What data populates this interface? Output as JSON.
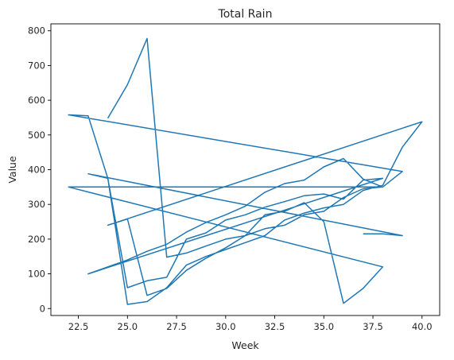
{
  "chart_data": {
    "type": "line",
    "title": "Total Rain",
    "xlabel": "Week",
    "ylabel": "Value",
    "xlim": [
      21.1,
      40.9
    ],
    "ylim": [
      -20,
      820
    ],
    "x_ticks": [
      22.5,
      25.0,
      27.5,
      30.0,
      32.5,
      35.0,
      37.5,
      40.0
    ],
    "x_tick_labels": [
      "22.5",
      "25.0",
      "27.5",
      "30.0",
      "32.5",
      "35.0",
      "37.5",
      "40.0"
    ],
    "y_ticks": [
      0,
      100,
      200,
      300,
      400,
      500,
      600,
      700,
      800
    ],
    "y_tick_labels": [
      "0",
      "100",
      "200",
      "300",
      "400",
      "500",
      "600",
      "700",
      "800"
    ],
    "grid": false,
    "legend": "none",
    "color": "#1f77b4",
    "series": [
      {
        "x": [
          24,
          25,
          26,
          27,
          28,
          29,
          30,
          31,
          32,
          33,
          34,
          35,
          36,
          37,
          38,
          39,
          22,
          23,
          24,
          25,
          26,
          27,
          28,
          29,
          30,
          31,
          32,
          33,
          34,
          35,
          36,
          37,
          38,
          39,
          40,
          24,
          25,
          26,
          27,
          28,
          29,
          30,
          31,
          32,
          33,
          34,
          35,
          36,
          37,
          38,
          22,
          38,
          37,
          36,
          35,
          34,
          33,
          32,
          31,
          30,
          29,
          28,
          27,
          26,
          25,
          24,
          23,
          38,
          37,
          36,
          35,
          34,
          33,
          32,
          31,
          30,
          29,
          28,
          27,
          26,
          25,
          24,
          23,
          39,
          38,
          37
        ],
        "y": [
          548,
          645,
          778,
          148,
          160,
          180,
          200,
          210,
          230,
          240,
          270,
          280,
          320,
          345,
          350,
          395,
          558,
          555,
          375,
          12,
          20,
          60,
          125,
          150,
          170,
          190,
          210,
          255,
          275,
          290,
          300,
          340,
          355,
          465,
          538,
          240,
          258,
          38,
          58,
          110,
          145,
          175,
          210,
          270,
          280,
          305,
          250,
          15,
          58,
          120,
          350,
          350,
          373,
          432,
          408,
          370,
          360,
          335,
          295,
          270,
          248,
          220,
          185,
          165,
          140,
          120,
          100,
          375,
          370,
          315,
          330,
          325,
          308,
          292,
          270,
          255,
          218,
          200,
          90,
          80,
          60,
          375,
          388,
          210,
          215,
          215
        ]
      }
    ]
  }
}
